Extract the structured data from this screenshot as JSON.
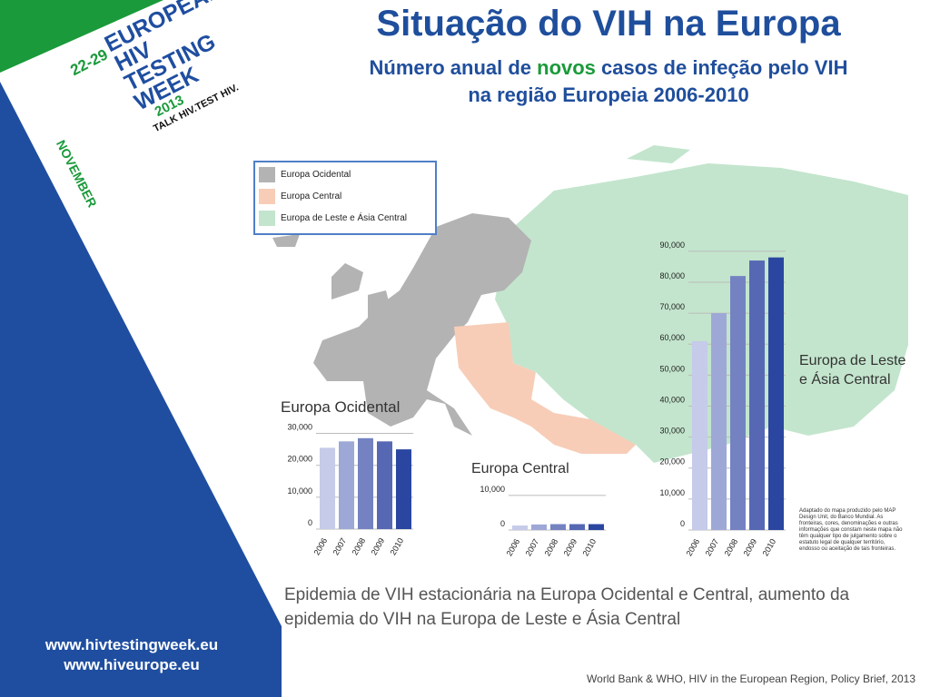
{
  "header": {
    "title": "Situação do VIH na Europa",
    "subtitle_part1": "Número anual de ",
    "subtitle_highlight": "novos",
    "subtitle_part2": " casos de infeção pelo VIH",
    "subtitle_line2": "na região Europeia 2006-2010"
  },
  "logo": {
    "dates": "22-29",
    "line1": "EUROPEAN",
    "line2": "HIV",
    "line3": "TESTING",
    "line4": "WEEK",
    "month": "NOVEMBER",
    "year": "2013",
    "tagline": "TALK HIV.TEST HIV."
  },
  "links": {
    "url1": "www.hivtestingweek.eu",
    "url2": "www.hiveurope.eu"
  },
  "legend": {
    "items": [
      {
        "label": "Europa Ocidental",
        "color": "#b3b3b3"
      },
      {
        "label": "Europa Central",
        "color": "#f7cdb8"
      },
      {
        "label": "Europa de Leste e Ásia Central",
        "color": "#c3e5cd"
      }
    ]
  },
  "map_note": "Adaptado do mapa produzido pelo MAP Design Unit, do Banco Mundial. As fronteiras, cores, denominações e outras informações que constam neste mapa não têm qualquer tipo de julgamento sobre o estatuto legal de qualquer território, endosso ou aceitação de tais fronteiras.",
  "caption": "Epidemia de VIH estacionária na Europa Ocidental e Central, aumento da epidemia do VIH na Europa de Leste e Ásia Central",
  "source": "World Bank & WHO, HIV in the European Region, Policy Brief, 2013",
  "chart_data": [
    {
      "type": "bar",
      "title": "Europa Ocidental",
      "categories": [
        "2006",
        "2007",
        "2008",
        "2009",
        "2010"
      ],
      "values": [
        25500,
        27500,
        28500,
        27500,
        25000
      ],
      "yticks": [
        "0",
        "10,000",
        "20,000",
        "30,000"
      ],
      "ylim": [
        0,
        33000
      ],
      "colors": [
        "#c5cbe8",
        "#9ea8d6",
        "#7482c2",
        "#5668b4",
        "#2a46a0"
      ]
    },
    {
      "type": "bar",
      "title": "Europa Central",
      "categories": [
        "2006",
        "2007",
        "2008",
        "2009",
        "2010"
      ],
      "values": [
        1300,
        1600,
        1700,
        1700,
        1700
      ],
      "yticks": [
        "0",
        "10,000"
      ],
      "ylim": [
        0,
        10500
      ],
      "colors": [
        "#c5cbe8",
        "#9ea8d6",
        "#7482c2",
        "#5668b4",
        "#2a46a0"
      ]
    },
    {
      "type": "bar",
      "title": "Europa de Leste e Ásia Central",
      "categories": [
        "2006",
        "2007",
        "2008",
        "2009",
        "2010"
      ],
      "values": [
        61000,
        70000,
        82000,
        87000,
        88000
      ],
      "yticks": [
        "0",
        "10,000",
        "20,000",
        "30,000",
        "40,000",
        "50,000",
        "60,000",
        "70,000",
        "80,000",
        "90,000"
      ],
      "ylim": [
        0,
        92000
      ],
      "colors": [
        "#c5cbe8",
        "#9ea8d6",
        "#7482c2",
        "#5668b4",
        "#2a46a0"
      ]
    }
  ]
}
